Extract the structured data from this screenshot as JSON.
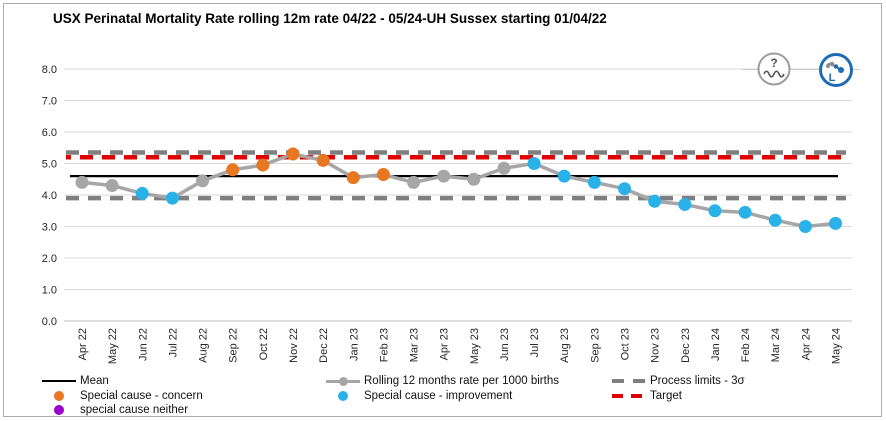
{
  "title": "USX Perinatal Mortality Rate rolling 12m rate 04/22 - 05/24-UH Sussex starting 01/04/22",
  "corner_icons": {
    "variation": {
      "glyph": "?"
    },
    "assurance": {
      "letter": "L"
    }
  },
  "chart_data": {
    "type": "line",
    "title": "USX Perinatal Mortality Rate rolling 12m rate 04/22 - 05/24-UH Sussex starting 01/04/22",
    "x_categories": [
      "Apr 22",
      "May 22",
      "Jun 22",
      "Jul 22",
      "Aug 22",
      "Sep 22",
      "Oct 22",
      "Nov 22",
      "Dec 22",
      "Jan 23",
      "Feb 23",
      "Mar 23",
      "Apr 23",
      "May 23",
      "Jun 23",
      "Jul 23",
      "Aug 23",
      "Sep 23",
      "Oct 23",
      "Nov 23",
      "Dec 23",
      "Jan 24",
      "Feb 24",
      "Mar 24",
      "Apr 24",
      "May 24"
    ],
    "series": [
      {
        "name": "Rolling 12 months rate per 1000 births",
        "values": [
          4.4,
          4.3,
          4.05,
          3.9,
          4.45,
          4.8,
          4.95,
          5.3,
          5.1,
          4.55,
          4.65,
          4.4,
          4.6,
          4.5,
          4.85,
          5.0,
          4.6,
          4.4,
          4.2,
          3.8,
          3.7,
          3.5,
          3.45,
          3.2,
          3.0,
          3.1
        ],
        "point_types": [
          "common",
          "common",
          "improvement",
          "improvement",
          "common",
          "concern",
          "concern",
          "concern",
          "concern",
          "concern",
          "concern",
          "common",
          "common",
          "common",
          "common",
          "improvement",
          "improvement",
          "improvement",
          "improvement",
          "improvement",
          "improvement",
          "improvement",
          "improvement",
          "improvement",
          "improvement",
          "improvement"
        ]
      }
    ],
    "reference_lines": {
      "mean": 4.6,
      "upper_process_limit": 5.35,
      "lower_process_limit": 3.9,
      "target": 5.2
    },
    "ylim": [
      0.0,
      8.0
    ],
    "ytick_labels": [
      "0.0",
      "1.0",
      "2.0",
      "3.0",
      "4.0",
      "5.0",
      "6.0",
      "7.0",
      "8.0"
    ],
    "grid": true,
    "legend_position": "bottom",
    "colors": {
      "line": "#a6a6a6",
      "common": "#a6a6a6",
      "concern": "#e87722",
      "improvement": "#29b2e8",
      "neither": "#9900cc",
      "mean": "#000000",
      "limits": "#7f7f7f",
      "target": "#e00000",
      "gridline": "#d9d9d9",
      "axis": "#bdbdbd"
    }
  },
  "legend": {
    "columns": [
      {
        "items": [
          {
            "swatch": "mean-line",
            "label": "Mean"
          },
          {
            "swatch": "concern-dot",
            "label": "Special cause - concern"
          },
          {
            "swatch": "neither-dot",
            "label": "special cause neither"
          }
        ]
      },
      {
        "items": [
          {
            "swatch": "series-line",
            "label": "Rolling 12 months rate per 1000 births"
          },
          {
            "swatch": "improvement-dot",
            "label": "Special cause  - improvement"
          }
        ]
      },
      {
        "items": [
          {
            "swatch": "limits-dash",
            "label": "Process limits - 3σ"
          },
          {
            "swatch": "target-dash",
            "label": "Target"
          }
        ]
      }
    ]
  }
}
